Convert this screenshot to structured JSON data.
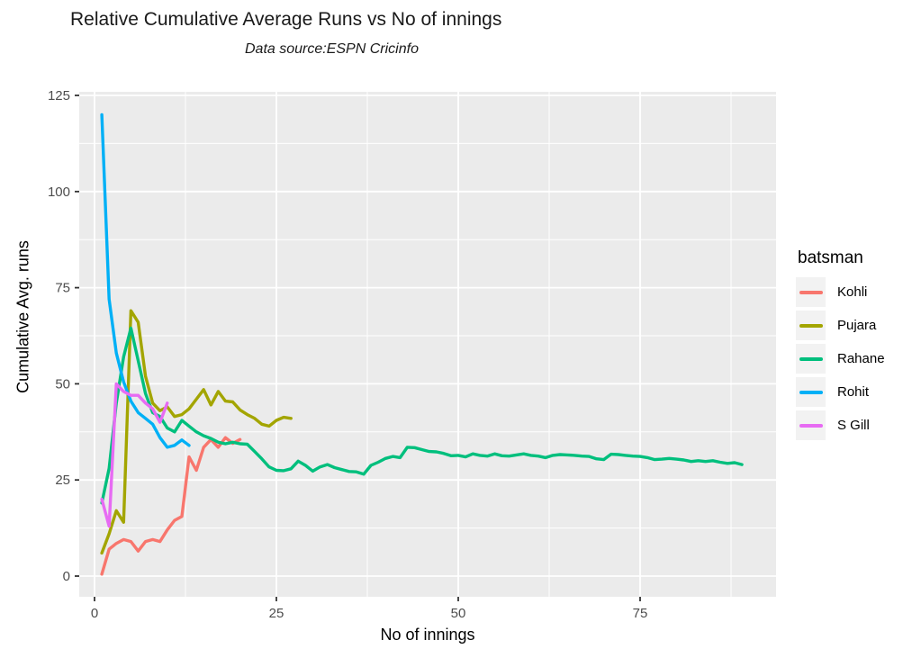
{
  "header": {
    "title": "Relative Cumulative Average Runs vs No of innings",
    "subtitle": "Data source:ESPN Cricinfo"
  },
  "chart_data": {
    "type": "line",
    "title": "Relative Cumulative Average Runs vs No of innings",
    "subtitle": "Data source:ESPN Cricinfo",
    "xlabel": "No of innings",
    "ylabel": "Cumulative Avg. runs",
    "xlim": [
      -2,
      94
    ],
    "ylim": [
      -5,
      126
    ],
    "x_ticks": [
      0,
      25,
      50,
      75
    ],
    "x_minor_ticks": [
      12.5,
      37.5,
      62.5,
      87.5
    ],
    "y_ticks": [
      0,
      25,
      50,
      75,
      100,
      125
    ],
    "y_minor_ticks": [
      12.5,
      37.5,
      62.5,
      87.5,
      112.5
    ],
    "grid": true,
    "panel_background": "#EBEBEB",
    "grid_color": "#FFFFFF",
    "tick_color": "#333333",
    "tick_label_color": "#4D4D4D",
    "legend_title": "batsman",
    "legend_position": "right",
    "legend_key_background": "#F2F2F2",
    "series": [
      {
        "name": "Kohli",
        "color": "#F8766D",
        "x_start": 1,
        "y": [
          0.5,
          7,
          8.5,
          9.5,
          9,
          6.5,
          9,
          9.5,
          9,
          12,
          14.5,
          15.5,
          31,
          27.5,
          33.5,
          35.5,
          33.5,
          36,
          34.5,
          35.5
        ]
      },
      {
        "name": "Pujara",
        "color": "#A3A500",
        "x_start": 1,
        "y": [
          6,
          11,
          17,
          14,
          69,
          66,
          52,
          45,
          43,
          44,
          41.5,
          42,
          43.5,
          46,
          48.5,
          44.5,
          48,
          45.5,
          45.3,
          43.2,
          42,
          41,
          39.5,
          39,
          40.5,
          41.3,
          41
        ]
      },
      {
        "name": "Rahane",
        "color": "#00BF7D",
        "x_start": 1,
        "y": [
          19,
          28,
          45,
          57,
          64.5,
          56,
          47.5,
          42.5,
          41.5,
          38.5,
          37.5,
          40.5,
          39,
          37.5,
          36.5,
          35.8,
          34.8,
          34.4,
          34.8,
          34.4,
          34.3,
          32.4,
          30.5,
          28.4,
          27.5,
          27.4,
          27.9,
          29.9,
          28.8,
          27.3,
          28.4,
          29,
          28.2,
          27.7,
          27.2,
          27.1,
          26.5,
          28.8,
          29.6,
          30.6,
          31.1,
          30.8,
          33.5,
          33.4,
          32.9,
          32.4,
          32.3,
          31.9,
          31.3,
          31.4,
          31,
          31.8,
          31.4,
          31.2,
          31.8,
          31.3,
          31.2,
          31.5,
          31.8,
          31.4,
          31.2,
          30.8,
          31.4,
          31.6,
          31.5,
          31.4,
          31.2,
          31.1,
          30.5,
          30.3,
          31.7,
          31.6,
          31.4,
          31.2,
          31.1,
          30.8,
          30.3,
          30.4,
          30.6,
          30.4,
          30.2,
          29.8,
          30,
          29.8,
          30,
          29.6,
          29.3,
          29.5,
          29
        ]
      },
      {
        "name": "Rohit",
        "color": "#00B0F6",
        "x_start": 1,
        "y": [
          120,
          72,
          58,
          50.5,
          45.5,
          42.5,
          41,
          39.5,
          36,
          33.5,
          34,
          35.4,
          34
        ]
      },
      {
        "name": "S Gill",
        "color": "#E76BF3",
        "x_start": 1,
        "y": [
          20,
          13,
          50,
          48,
          47,
          47,
          45,
          43.5,
          40,
          45
        ]
      }
    ]
  }
}
